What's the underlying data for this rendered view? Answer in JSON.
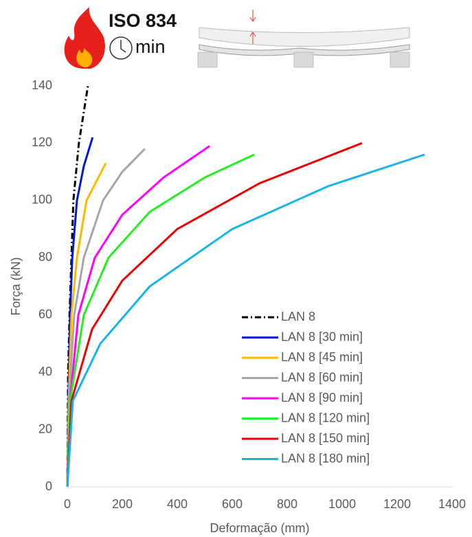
{
  "chart_data": {
    "type": "line",
    "annotations": [
      "ISO 834",
      "min"
    ],
    "xlabel": "Deformação (mm)",
    "ylabel": "Força (kN)",
    "xlim": [
      0,
      1400
    ],
    "xticks": [
      0,
      200,
      400,
      600,
      800,
      1000,
      1200,
      1400
    ],
    "ylim": [
      0,
      140
    ],
    "yticks": [
      0,
      20,
      40,
      60,
      80,
      100,
      120,
      140
    ],
    "grid": false,
    "legend": "lower right",
    "series": [
      {
        "name": "LAN 8",
        "color": "#000000",
        "dash": true,
        "x": [
          0,
          3,
          8,
          15,
          22,
          42,
          75
        ],
        "values": [
          0,
          40,
          60,
          80,
          100,
          120,
          140
        ]
      },
      {
        "name": "LAN 8 [30 min]",
        "color": "#0019d4",
        "x": [
          0,
          4,
          10,
          18,
          35,
          60,
          92
        ],
        "values": [
          0,
          30,
          60,
          80,
          100,
          112,
          122
        ]
      },
      {
        "name": "LAN 8 [45 min]",
        "color": "#ffb800",
        "x": [
          0,
          5,
          15,
          35,
          70,
          140
        ],
        "values": [
          0,
          30,
          60,
          80,
          100,
          113
        ]
      },
      {
        "name": "LAN 8 [60 min]",
        "color": "#a6a6a6",
        "x": [
          0,
          6,
          25,
          60,
          130,
          200,
          282
        ],
        "values": [
          0,
          30,
          60,
          80,
          100,
          110,
          118
        ]
      },
      {
        "name": "LAN 8 [90 min]",
        "color": "#ff00ff",
        "x": [
          0,
          10,
          40,
          100,
          200,
          350,
          518
        ],
        "values": [
          0,
          30,
          60,
          80,
          95,
          108,
          119
        ]
      },
      {
        "name": "LAN 8 [120 min]",
        "color": "#22ee22",
        "x": [
          0,
          10,
          60,
          150,
          300,
          500,
          680
        ],
        "values": [
          0,
          30,
          60,
          80,
          96,
          108,
          116
        ]
      },
      {
        "name": "LAN 8 [150 min]",
        "color": "#ee0000",
        "x": [
          0,
          15,
          90,
          200,
          400,
          700,
          1072
        ],
        "values": [
          0,
          30,
          55,
          72,
          90,
          106,
          120
        ]
      },
      {
        "name": "LAN 8 [180 min]",
        "color": "#14b4ea",
        "x": [
          0,
          20,
          120,
          300,
          600,
          950,
          1300
        ],
        "values": [
          0,
          30,
          50,
          70,
          90,
          105,
          116
        ]
      }
    ]
  }
}
